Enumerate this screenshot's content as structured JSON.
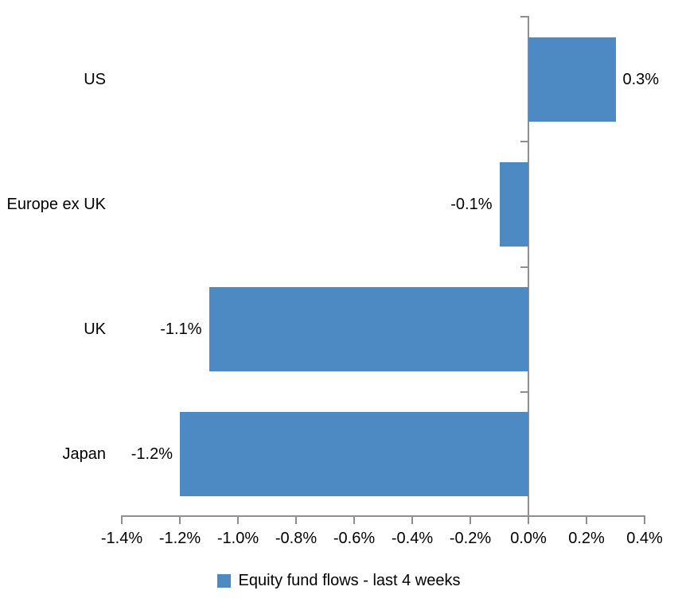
{
  "chart_data": {
    "type": "bar",
    "orientation": "horizontal",
    "title": "",
    "categories": [
      "US",
      "Europe ex UK",
      "UK",
      "Japan"
    ],
    "series": [
      {
        "name": "Equity fund flows - last 4 weeks",
        "values": [
          0.3,
          -0.1,
          -1.1,
          -1.2
        ],
        "data_labels": [
          "0.3%",
          "-0.1%",
          "-1.1%",
          "-1.2%"
        ]
      }
    ],
    "xlim": [
      -1.4,
      0.4
    ],
    "x_ticks": [
      -1.4,
      -1.2,
      -1.0,
      -0.8,
      -0.6,
      -0.4,
      -0.2,
      0.0,
      0.2,
      0.4
    ],
    "x_tick_labels": [
      "-1.4%",
      "-1.2%",
      "-1.0%",
      "-0.8%",
      "-0.6%",
      "-0.4%",
      "-0.2%",
      "0.0%",
      "0.2%",
      "0.4%"
    ],
    "grid": false,
    "legend_position": "bottom-center",
    "legend": [
      {
        "label": "Equity fund flows - last 4 weeks",
        "swatch": "blue-square"
      }
    ],
    "colors": {
      "bar": "#4D89C3",
      "axis": "#8E8E8E",
      "text": "#000000",
      "background": "#FFFFFF"
    }
  }
}
